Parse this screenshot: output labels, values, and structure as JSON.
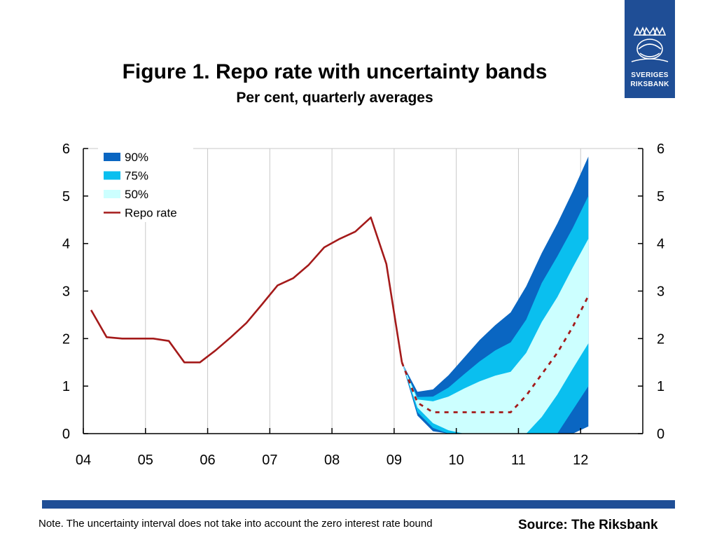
{
  "header": {
    "title": "Figure 1. Repo rate with uncertainty bands",
    "subtitle": "Per cent, quarterly averages"
  },
  "logo": {
    "line1": "SVERIGES",
    "line2": "RIKSBANK"
  },
  "footer": {
    "note": "Note. The uncertainty interval does not take into account the zero interest rate bound",
    "source": "Source: The Riksbank"
  },
  "colors": {
    "band90": "#0a66c2",
    "band75": "#0abfef",
    "band50": "#ccffff",
    "repo": "#a41a1a",
    "footer_bar": "#1f4e96"
  },
  "chart_data": {
    "type": "area",
    "x_axis": {
      "range": [
        2004,
        2013
      ],
      "tick_values": [
        2004,
        2005,
        2006,
        2007,
        2008,
        2009,
        2010,
        2011,
        2012
      ],
      "tick_labels": [
        "04",
        "05",
        "06",
        "07",
        "08",
        "09",
        "10",
        "11",
        "12"
      ]
    },
    "y_axis": {
      "range": [
        0,
        6
      ],
      "tick_values": [
        0,
        1,
        2,
        3,
        4,
        5,
        6
      ],
      "tick_labels": [
        "0",
        "1",
        "2",
        "3",
        "4",
        "5",
        "6"
      ],
      "right_axis_mirrored": true
    },
    "grid": "vertical",
    "legend": {
      "position": "top-left",
      "entries": [
        {
          "key": "band90",
          "label": "90%",
          "kind": "swatch"
        },
        {
          "key": "band75",
          "label": "75%",
          "kind": "swatch"
        },
        {
          "key": "band50",
          "label": "50%",
          "kind": "swatch"
        },
        {
          "key": "repo",
          "label": "Repo rate",
          "kind": "line"
        }
      ]
    },
    "repo_rate": {
      "x": [
        2004.125,
        2004.375,
        2004.625,
        2004.875,
        2005.125,
        2005.375,
        2005.625,
        2005.875,
        2006.125,
        2006.375,
        2006.625,
        2006.875,
        2007.125,
        2007.375,
        2007.625,
        2007.875,
        2008.125,
        2008.375,
        2008.625,
        2008.875,
        2009.125
      ],
      "y": [
        2.6,
        2.03,
        2.0,
        2.0,
        2.0,
        1.95,
        1.5,
        1.5,
        1.75,
        2.03,
        2.33,
        2.72,
        3.12,
        3.27,
        3.55,
        3.92,
        4.1,
        4.25,
        4.55,
        3.57,
        1.5
      ]
    },
    "forecast": {
      "x": [
        2009.125,
        2009.375,
        2009.625,
        2009.875,
        2010.125,
        2010.375,
        2010.625,
        2010.875,
        2011.125,
        2011.375,
        2011.625,
        2011.875,
        2012.125
      ],
      "median": [
        1.5,
        0.65,
        0.45,
        0.45,
        0.45,
        0.45,
        0.45,
        0.45,
        0.8,
        1.25,
        1.7,
        2.25,
        2.9
      ],
      "bands": {
        "upper90": [
          1.5,
          0.88,
          0.93,
          1.23,
          1.6,
          1.97,
          2.28,
          2.55,
          3.1,
          3.8,
          4.42,
          5.1,
          5.83
        ],
        "upper75": [
          1.5,
          0.77,
          0.78,
          0.97,
          1.25,
          1.52,
          1.75,
          1.92,
          2.4,
          3.17,
          3.73,
          4.33,
          5.0
        ],
        "upper50": [
          1.5,
          0.72,
          0.68,
          0.78,
          0.95,
          1.1,
          1.22,
          1.3,
          1.7,
          2.35,
          2.87,
          3.5,
          4.1
        ],
        "lower50": [
          1.5,
          0.55,
          0.22,
          0.07,
          0.0,
          0.0,
          0.0,
          0.0,
          0.0,
          0.35,
          0.82,
          1.37,
          1.9
        ],
        "lower75": [
          1.5,
          0.45,
          0.12,
          0.0,
          0.0,
          0.0,
          0.0,
          0.0,
          0.0,
          0.0,
          0.0,
          0.5,
          1.0
        ],
        "lower90": [
          1.5,
          0.38,
          0.05,
          0.0,
          0.0,
          0.0,
          0.0,
          0.0,
          0.0,
          0.0,
          0.0,
          0.0,
          0.15
        ]
      }
    }
  }
}
